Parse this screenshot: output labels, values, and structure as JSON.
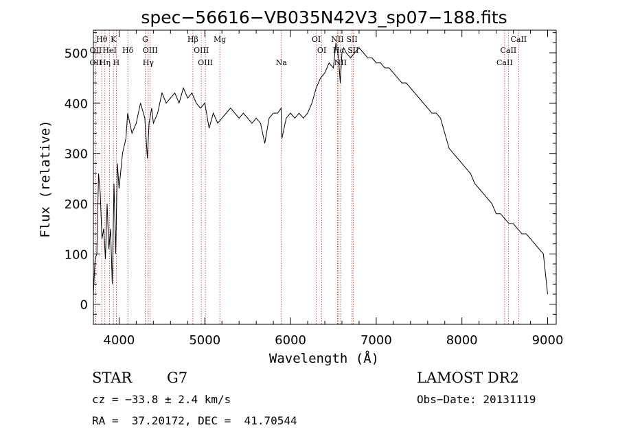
{
  "chart_data": {
    "type": "line",
    "title": "spec−56616−VB035N42V3_sp07−188.fits",
    "xlabel": "Wavelength (Å)",
    "ylabel": "Flux (relative)",
    "xlim": [
      3700,
      9100
    ],
    "ylim": [
      -40,
      545
    ],
    "x_ticks": [
      4000,
      5000,
      6000,
      7000,
      8000,
      9000
    ],
    "y_ticks": [
      0,
      100,
      200,
      300,
      400,
      500
    ],
    "grid": false,
    "series": [
      {
        "x": [
          3700,
          3720,
          3740,
          3760,
          3780,
          3800,
          3820,
          3840,
          3860,
          3880,
          3900,
          3920,
          3940,
          3960,
          3980,
          4000,
          4040,
          4080,
          4100,
          4150,
          4200,
          4250,
          4300,
          4330,
          4350,
          4380,
          4400,
          4450,
          4500,
          4550,
          4600,
          4650,
          4700,
          4750,
          4800,
          4850,
          4900,
          4950,
          5000,
          5050,
          5100,
          5150,
          5200,
          5250,
          5300,
          5350,
          5400,
          5450,
          5500,
          5550,
          5600,
          5650,
          5700,
          5750,
          5800,
          5850,
          5890,
          5900,
          5950,
          6000,
          6050,
          6100,
          6150,
          6200,
          6250,
          6300,
          6350,
          6400,
          6450,
          6500,
          6530,
          6560,
          6580,
          6600,
          6620,
          6650,
          6700,
          6750,
          6800,
          6850,
          6900,
          6950,
          7000,
          7050,
          7100,
          7150,
          7200,
          7250,
          7300,
          7350,
          7400,
          7450,
          7500,
          7550,
          7600,
          7650,
          7700,
          7750,
          7800,
          7850,
          7900,
          7950,
          8000,
          8050,
          8100,
          8150,
          8200,
          8250,
          8300,
          8350,
          8400,
          8450,
          8500,
          8550,
          8600,
          8650,
          8700,
          8750,
          8800,
          8850,
          8900,
          8950,
          9000
        ],
        "y": [
          20,
          90,
          100,
          260,
          220,
          130,
          150,
          90,
          200,
          110,
          150,
          40,
          240,
          100,
          280,
          230,
          300,
          330,
          380,
          340,
          360,
          400,
          370,
          290,
          360,
          390,
          360,
          380,
          420,
          400,
          410,
          420,
          400,
          430,
          410,
          420,
          400,
          390,
          400,
          350,
          380,
          360,
          370,
          380,
          390,
          380,
          370,
          380,
          370,
          360,
          370,
          360,
          320,
          370,
          380,
          380,
          390,
          330,
          370,
          380,
          370,
          380,
          370,
          380,
          400,
          430,
          450,
          460,
          480,
          470,
          520,
          490,
          440,
          500,
          510,
          500,
          490,
          500,
          510,
          500,
          490,
          490,
          480,
          480,
          470,
          470,
          460,
          450,
          440,
          440,
          430,
          420,
          410,
          400,
          390,
          380,
          380,
          370,
          340,
          310,
          300,
          290,
          280,
          270,
          260,
          240,
          230,
          220,
          210,
          200,
          180,
          180,
          170,
          160,
          160,
          150,
          140,
          140,
          130,
          120,
          110,
          100,
          20
        ]
      }
    ],
    "lines": [
      {
        "label": "Hθ",
        "x": 3798,
        "row": 0
      },
      {
        "label": "K",
        "x": 3934,
        "row": 0
      },
      {
        "label": "G",
        "x": 4304,
        "row": 0
      },
      {
        "label": "Hβ",
        "x": 4861,
        "row": 0
      },
      {
        "label": "Mg",
        "x": 5175,
        "row": 0
      },
      {
        "label": "OI",
        "x": 6300,
        "row": 0
      },
      {
        "label": "NII",
        "x": 6548,
        "row": 0
      },
      {
        "label": "SII",
        "x": 6717,
        "row": 0
      },
      {
        "label": "CaII",
        "x": 8662,
        "row": 0
      },
      {
        "label": "OII",
        "x": 3727,
        "row": 1
      },
      {
        "label": "HeI",
        "x": 3889,
        "row": 1
      },
      {
        "label": "Hδ",
        "x": 4102,
        "row": 1
      },
      {
        "label": "OIII",
        "x": 4363,
        "row": 1
      },
      {
        "label": "OIII",
        "x": 4959,
        "row": 1
      },
      {
        "label": "OI",
        "x": 6364,
        "row": 1
      },
      {
        "label": "Hα",
        "x": 6563,
        "row": 1
      },
      {
        "label": "SII",
        "x": 6731,
        "row": 1
      },
      {
        "label": "CaII",
        "x": 8542,
        "row": 1
      },
      {
        "label": "OII",
        "x": 3727,
        "row": 2
      },
      {
        "label": "Hη",
        "x": 3835,
        "row": 2
      },
      {
        "label": "H",
        "x": 3968,
        "row": 2
      },
      {
        "label": "Hγ",
        "x": 4340,
        "row": 2
      },
      {
        "label": "OIII",
        "x": 5007,
        "row": 2
      },
      {
        "label": "Na",
        "x": 5893,
        "row": 2
      },
      {
        "label": "NII",
        "x": 6584,
        "row": 2
      },
      {
        "label": "CaII",
        "x": 8498,
        "row": 2
      }
    ]
  },
  "info": {
    "object_class": "STAR",
    "subclass": "G7",
    "survey": "LAMOST DR2",
    "redshift": "cz = −33.8 ± 2.4 km/s",
    "obs_date": "Obs−Date: 20131119",
    "coords": "RA =  37.20172, DEC =  41.70544"
  }
}
